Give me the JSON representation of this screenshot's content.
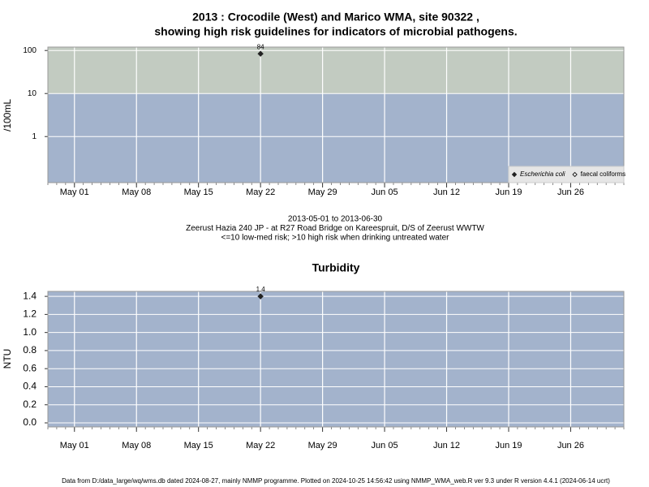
{
  "chart_data": [
    {
      "type": "scatter",
      "title": [
        "2013 : Crocodile (West) and Marico WMA, site 90322 ,",
        "showing high risk guidelines for indicators of microbial pathogens."
      ],
      "subtitle": [
        "2013-05-01 to 2013-06-30",
        "Zeerust Hazia 240 JP - at R27 Road Bridge on Kareespruit, D/S of Zeerust WWTW",
        "<=10 low-med risk; >10 high risk when drinking untreated water"
      ],
      "y_label": "/100mL",
      "log_scale": true,
      "ylim": [
        0.085,
        120
      ],
      "yticks": [
        1,
        10,
        100
      ],
      "xlim": [
        "2013-04-28",
        "2013-07-02"
      ],
      "xticks": [
        {
          "value": "2013-05-01",
          "label": "May 01"
        },
        {
          "value": "2013-05-08",
          "label": "May 08"
        },
        {
          "value": "2013-05-15",
          "label": "May 15"
        },
        {
          "value": "2013-05-22",
          "label": "May 22"
        },
        {
          "value": "2013-05-29",
          "label": "May 29"
        },
        {
          "value": "2013-06-05",
          "label": "Jun 05"
        },
        {
          "value": "2013-06-12",
          "label": "Jun 12"
        },
        {
          "value": "2013-06-19",
          "label": "Jun 19"
        },
        {
          "value": "2013-06-26",
          "label": "Jun 26"
        }
      ],
      "threshold": 10,
      "low_color": "#a3b3cc",
      "high_color": "#c2cbc1",
      "grid": true,
      "legend": "bottom right",
      "x": [
        "2013-05-22"
      ],
      "series": [
        {
          "name": "Escherichia coli",
          "color": "#222222",
          "values": [
            84
          ]
        },
        {
          "name": "faecal coliforms",
          "color": "#ffffff",
          "values": [
            null
          ]
        }
      ]
    },
    {
      "type": "scatter",
      "title": "Turbidity",
      "y_label": "NTU",
      "ylim": [
        -0.045,
        1.455
      ],
      "yticks": [
        {
          "value": 0,
          "label": "0.0"
        },
        0.2,
        0.4,
        0.6,
        0.8,
        {
          "value": 1,
          "label": "1.0"
        },
        1.2,
        1.4
      ],
      "xlim": [
        "2013-04-28",
        "2013-07-02"
      ],
      "xticks": [
        {
          "value": "2013-05-01",
          "label": "May 01"
        },
        {
          "value": "2013-05-08",
          "label": "May 08"
        },
        {
          "value": "2013-05-15",
          "label": "May 15"
        },
        {
          "value": "2013-05-22",
          "label": "May 22"
        },
        {
          "value": "2013-05-29",
          "label": "May 29"
        },
        {
          "value": "2013-06-05",
          "label": "Jun 05"
        },
        {
          "value": "2013-06-12",
          "label": "Jun 12"
        },
        {
          "value": "2013-06-19",
          "label": "Jun 19"
        },
        {
          "value": "2013-06-26",
          "label": "Jun 26"
        }
      ],
      "low_color": "#a3b3cc",
      "grid": true,
      "x": [
        "2013-05-22"
      ],
      "series": [
        {
          "color": "#222222",
          "values": [
            1.4
          ]
        }
      ]
    }
  ],
  "footer": "Data from D:/data_large/wq/wms.db dated 2024-08-27, mainly NMMP programme. Plotted on 2024-10-25 14:56:42 using NMMP_WMA_web.R ver 9.3 under R version 4.4.1 (2024-06-14 ucrt)"
}
